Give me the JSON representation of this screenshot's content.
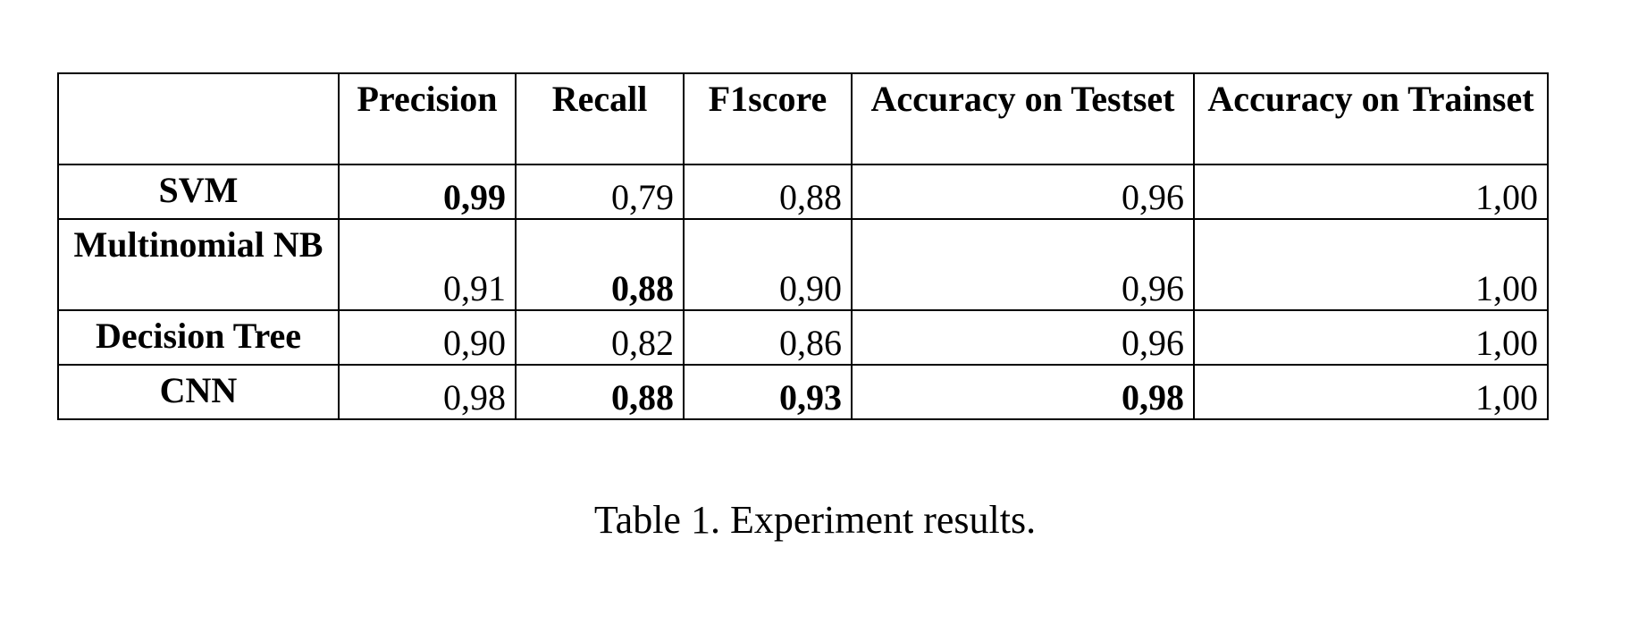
{
  "table": {
    "columns": [
      "",
      "Precision",
      "Recall",
      "F1score",
      "Accuracy on Testset",
      "Accuracy on Trainset"
    ],
    "rows": [
      {
        "model": "SVM",
        "values": [
          "0,99",
          "0,79",
          "0,88",
          "0,96",
          "1,00"
        ],
        "bold": [
          true,
          false,
          false,
          false,
          false
        ]
      },
      {
        "model": "Multinomial NB",
        "values": [
          "0,91",
          "0,88",
          "0,90",
          "0,96",
          "1,00"
        ],
        "bold": [
          false,
          true,
          false,
          false,
          false
        ]
      },
      {
        "model": "Decision Tree",
        "values": [
          "0,90",
          "0,82",
          "0,86",
          "0,96",
          "1,00"
        ],
        "bold": [
          false,
          false,
          false,
          false,
          false
        ]
      },
      {
        "model": "CNN",
        "values": [
          "0,98",
          "0,88",
          "0,93",
          "0,98",
          "1,00"
        ],
        "bold": [
          false,
          true,
          true,
          true,
          false
        ]
      }
    ]
  },
  "caption": "Table 1. Experiment results."
}
